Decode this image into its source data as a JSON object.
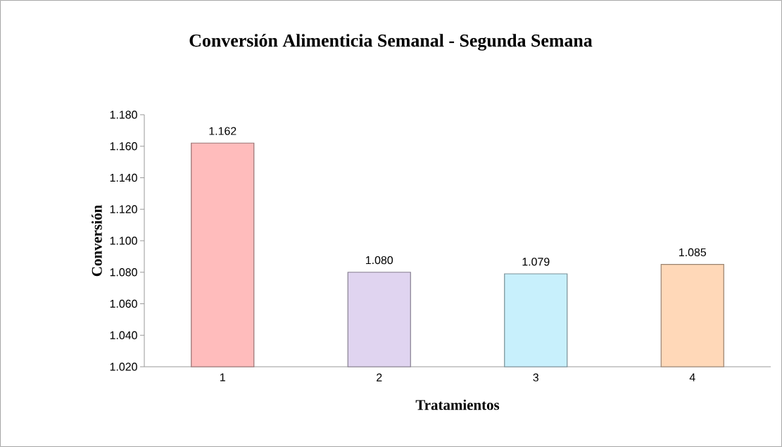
{
  "chart_data": {
    "type": "bar",
    "title": "Conversión Alimenticia Semanal - Segunda Semana",
    "xlabel": "Tratamientos",
    "ylabel": "Conversión",
    "categories": [
      "1",
      "2",
      "3",
      "4"
    ],
    "values": [
      1.162,
      1.08,
      1.079,
      1.085
    ],
    "value_labels": [
      "1.162",
      "1.080",
      "1.079",
      "1.085"
    ],
    "colors": [
      "#ffbcbc",
      "#e0d4f0",
      "#c8f0fc",
      "#ffd8b8"
    ],
    "ylim": [
      1.02,
      1.18
    ],
    "yticks": [
      {
        "value": 1.02,
        "label": "1.020"
      },
      {
        "value": 1.04,
        "label": "1.040"
      },
      {
        "value": 1.06,
        "label": "1.060"
      },
      {
        "value": 1.08,
        "label": "1.080"
      },
      {
        "value": 1.1,
        "label": "1.100"
      },
      {
        "value": 1.12,
        "label": "1.120"
      },
      {
        "value": 1.14,
        "label": "1.140"
      },
      {
        "value": 1.16,
        "label": "1.160"
      },
      {
        "value": 1.18,
        "label": "1.180"
      }
    ],
    "grid": false
  }
}
